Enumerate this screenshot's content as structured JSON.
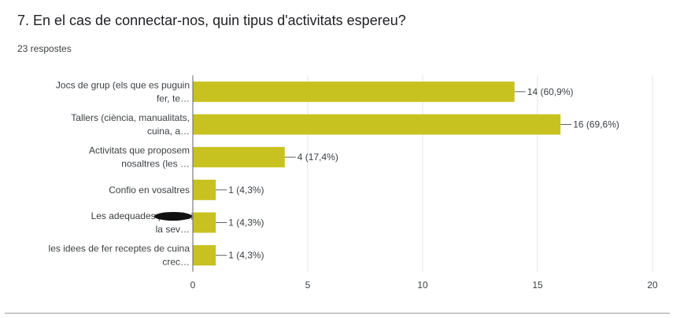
{
  "question": {
    "title": "7. En el cas de connectar-nos, quin tipus d'activitats espereu?",
    "responses": "23 respostes"
  },
  "colors": {
    "bar": "#c8c220",
    "grid": "#e6e6e6",
    "axis": "#5f6368",
    "label": "#3c4043"
  },
  "chart_data": {
    "type": "bar",
    "orientation": "horizontal",
    "categories": [
      [
        "Jocs de grup (els que es puguin",
        "fer, te…"
      ],
      [
        "Tallers (ciència, manualitats,",
        "cuina, a…"
      ],
      [
        "Activitats que proposem",
        "nosaltres (les …"
      ],
      [
        "Confio en vosaltres"
      ],
      [
        "Les adequades per a la",
        "la sev…"
      ],
      [
        "les idees de fer receptes de cuina",
        "crec…"
      ]
    ],
    "values": [
      14,
      16,
      4,
      1,
      1,
      1
    ],
    "data_labels": [
      "14 (60,9%)",
      "16 (69,6%)",
      "4 (17,4%)",
      "1 (4,3%)",
      "1 (4,3%)",
      "1 (4,3%)"
    ],
    "xlim": [
      0,
      20
    ],
    "xticks": [
      0,
      5,
      10,
      15,
      20
    ],
    "grid": true,
    "title": "",
    "xlabel": "",
    "ylabel": ""
  }
}
